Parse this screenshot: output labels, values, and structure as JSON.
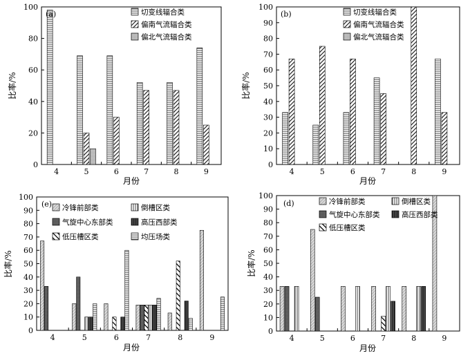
{
  "chart_data": [
    {
      "type": "bar",
      "panel_label": "(a)",
      "xlabel": "月份",
      "ylabel": "比率/%",
      "ylim": [
        0,
        100
      ],
      "yticks": [
        0,
        20,
        40,
        60,
        80,
        100
      ],
      "categories": [
        "4",
        "5",
        "6",
        "7",
        "8",
        "9"
      ],
      "legend_position": "top-right",
      "series": [
        {
          "name": "切变线辐合类",
          "pattern": "hlines",
          "values": [
            98,
            69,
            69,
            52,
            52,
            74
          ]
        },
        {
          "name": "偏南气流辐合类",
          "pattern": "diag-dense",
          "values": [
            0,
            20,
            30,
            47,
            47,
            25
          ]
        },
        {
          "name": "偏北气流辐合类",
          "pattern": "dots",
          "values": [
            0,
            10,
            0,
            0,
            0,
            0
          ]
        }
      ]
    },
    {
      "type": "bar",
      "panel_label": "(b)",
      "xlabel": "月份",
      "ylabel": "比率/%",
      "ylim": [
        0,
        100
      ],
      "yticks": [
        0,
        10,
        20,
        30,
        40,
        50,
        60,
        70,
        80,
        90,
        100
      ],
      "categories": [
        "4",
        "5",
        "6",
        "7",
        "8",
        "9"
      ],
      "legend_position": "top-right",
      "series": [
        {
          "name": "切变线辐合类",
          "pattern": "hlines",
          "values": [
            33,
            25,
            33,
            55,
            0,
            67
          ]
        },
        {
          "name": "偏南气流辐合类",
          "pattern": "diag-dense",
          "values": [
            67,
            75,
            67,
            45,
            100,
            33
          ]
        },
        {
          "name": "偏北气流辐合类",
          "pattern": "dots",
          "values": [
            0,
            0,
            0,
            0,
            0,
            0
          ]
        }
      ]
    },
    {
      "type": "bar",
      "panel_label": "(e)",
      "xlabel": "月份",
      "ylabel": "比率/%",
      "ylim": [
        0,
        100
      ],
      "yticks": [
        0,
        10,
        20,
        30,
        40,
        50,
        60,
        70,
        80,
        90,
        100
      ],
      "categories": [
        "4",
        "5",
        "6",
        "7",
        "8",
        "9"
      ],
      "legend_position": "top",
      "series": [
        {
          "name": "冷锋前部类",
          "pattern": "diag-light",
          "values": [
            67,
            20,
            20,
            19,
            13,
            75
          ]
        },
        {
          "name": "气旋中心东部类",
          "pattern": "darkgray",
          "values": [
            33,
            40,
            0,
            19,
            0,
            0
          ]
        },
        {
          "name": "低压槽区类",
          "pattern": "diag-bold",
          "values": [
            0,
            0,
            10,
            19,
            52,
            0
          ]
        },
        {
          "name": "倒槽区类",
          "pattern": "vlines",
          "values": [
            0,
            10,
            0,
            19,
            0,
            0
          ]
        },
        {
          "name": "高压西部类",
          "pattern": "dark-vlines",
          "values": [
            0,
            10,
            10,
            19,
            22,
            0
          ]
        },
        {
          "name": "均压场类",
          "pattern": "hlines",
          "values": [
            0,
            20,
            60,
            24,
            9,
            25
          ]
        }
      ]
    },
    {
      "type": "bar",
      "panel_label": "(d)",
      "xlabel": "月份",
      "ylabel": "比率/%",
      "ylim": [
        0,
        100
      ],
      "yticks": [
        0,
        10,
        20,
        30,
        40,
        50,
        60,
        70,
        80,
        90,
        100
      ],
      "categories": [
        "4",
        "5",
        "6",
        "7",
        "8",
        "9"
      ],
      "legend_position": "top",
      "series": [
        {
          "name": "冷锋前部类",
          "pattern": "diag-light",
          "values": [
            33,
            75,
            33,
            33,
            33,
            100
          ]
        },
        {
          "name": "气旋中心东部类",
          "pattern": "darkgray",
          "values": [
            33,
            25,
            0,
            0,
            0,
            0
          ]
        },
        {
          "name": "低压槽区类",
          "pattern": "diag-bold",
          "values": [
            0,
            0,
            0,
            11,
            0,
            0
          ]
        },
        {
          "name": "倒槽区类",
          "pattern": "vlines",
          "values": [
            33,
            0,
            33,
            33,
            33,
            0
          ]
        },
        {
          "name": "高压西部类",
          "pattern": "dark-vlines",
          "values": [
            0,
            0,
            0,
            22,
            33,
            0
          ]
        }
      ]
    }
  ]
}
